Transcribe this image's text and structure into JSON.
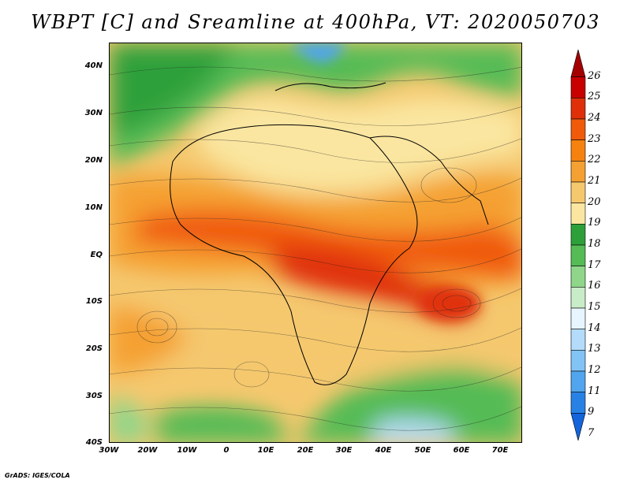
{
  "title": "WBPT [C] and Sreamline at 400hPa, VT: 2020050703",
  "footer": "GrADS: IGES/COLA",
  "lat_labels": [
    "40N",
    "30N",
    "20N",
    "10N",
    "EQ",
    "10S",
    "20S",
    "30S",
    "40S"
  ],
  "lon_labels": [
    "30W",
    "20W",
    "10W",
    "0",
    "10E",
    "20E",
    "30E",
    "40E",
    "50E",
    "60E",
    "70E"
  ],
  "colorbar": {
    "labels": [
      "26",
      "25",
      "24",
      "23",
      "22",
      "21",
      "20",
      "19",
      "18",
      "17",
      "16",
      "15",
      "14",
      "13",
      "12",
      "11",
      "9",
      "7"
    ],
    "colors": [
      "#a50000",
      "#c80000",
      "#e0300a",
      "#f05a0a",
      "#f5820f",
      "#f5a032",
      "#f5c86e",
      "#fae6a0",
      "#2ea03a",
      "#55bb55",
      "#8fd68a",
      "#c8ecc8",
      "#e6f5ff",
      "#b4dcfa",
      "#82c3f5",
      "#50a5ee",
      "#2882e6",
      "#1464dc"
    ]
  }
}
